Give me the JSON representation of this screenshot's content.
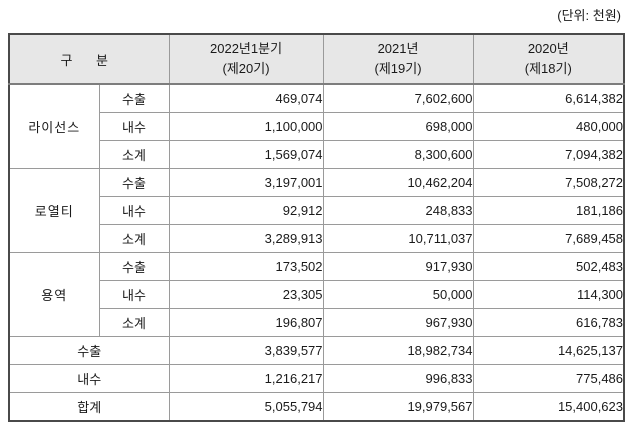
{
  "unit_label": "(단위: 천원)",
  "table": {
    "header": {
      "col_group": "구 분",
      "periods": [
        {
          "line1": "2022년1분기",
          "line2": "(제20기)"
        },
        {
          "line1": "2021년",
          "line2": "(제19기)"
        },
        {
          "line1": "2020년",
          "line2": "(제18기)"
        }
      ]
    },
    "groups": [
      {
        "name": "라이선스",
        "rows": [
          {
            "label": "수출",
            "values": [
              "469,074",
              "7,602,600",
              "6,614,382"
            ]
          },
          {
            "label": "내수",
            "values": [
              "1,100,000",
              "698,000",
              "480,000"
            ]
          },
          {
            "label": "소계",
            "values": [
              "1,569,074",
              "8,300,600",
              "7,094,382"
            ]
          }
        ]
      },
      {
        "name": "로열티",
        "rows": [
          {
            "label": "수출",
            "values": [
              "3,197,001",
              "10,462,204",
              "7,508,272"
            ]
          },
          {
            "label": "내수",
            "values": [
              "92,912",
              "248,833",
              "181,186"
            ]
          },
          {
            "label": "소계",
            "values": [
              "3,289,913",
              "10,711,037",
              "7,689,458"
            ]
          }
        ]
      },
      {
        "name": "용역",
        "rows": [
          {
            "label": "수출",
            "values": [
              "173,502",
              "917,930",
              "502,483"
            ]
          },
          {
            "label": "내수",
            "values": [
              "23,305",
              "50,000",
              "114,300"
            ]
          },
          {
            "label": "소계",
            "values": [
              "196,807",
              "967,930",
              "616,783"
            ]
          }
        ]
      }
    ],
    "totals": [
      {
        "label": "수출",
        "values": [
          "3,839,577",
          "18,982,734",
          "14,625,137"
        ]
      },
      {
        "label": "내수",
        "values": [
          "1,216,217",
          "996,833",
          "775,486"
        ]
      },
      {
        "label": "합계",
        "values": [
          "5,055,794",
          "19,979,567",
          "15,400,623"
        ]
      }
    ]
  },
  "colors": {
    "header_bg": "#e7e7e7",
    "border_outer": "#4a4a4a",
    "border_inner": "#9a9a9a",
    "text": "#1a1a1a"
  }
}
